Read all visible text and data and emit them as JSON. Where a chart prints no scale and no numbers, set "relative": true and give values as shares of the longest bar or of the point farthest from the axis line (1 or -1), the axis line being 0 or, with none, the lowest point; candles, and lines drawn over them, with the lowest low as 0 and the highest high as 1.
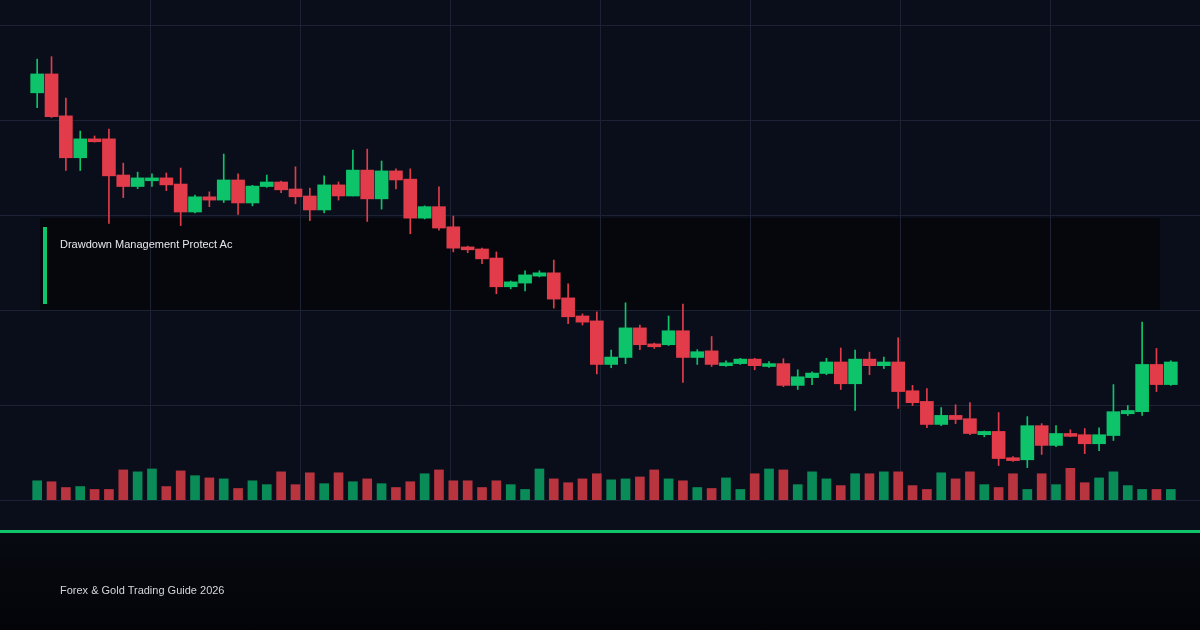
{
  "chart_data": [
    {
      "type": "candlestick",
      "relative": true,
      "grid": true,
      "categories": [
        null,
        null,
        null,
        null,
        null,
        null,
        null,
        null,
        null,
        null,
        null,
        null,
        null,
        null,
        null,
        null,
        null,
        null,
        null,
        null,
        null,
        null,
        null,
        null,
        null,
        null,
        null,
        null,
        null,
        null,
        null,
        null,
        null,
        null,
        null,
        null,
        null,
        null,
        null,
        null,
        null,
        null,
        null,
        null,
        null,
        null,
        null,
        null,
        null,
        null,
        null,
        null,
        null,
        null,
        null,
        null,
        null,
        null,
        null,
        null,
        null,
        null,
        null,
        null,
        null,
        null,
        null,
        null,
        null,
        null,
        null,
        null,
        null,
        null,
        null,
        null,
        null,
        null,
        null,
        null
      ],
      "ohlc": [
        [
          0.912,
          0.994,
          0.876,
          0.958
        ],
        [
          0.958,
          1,
          0.852,
          0.854
        ],
        [
          0.856,
          0.899,
          0.723,
          0.754
        ],
        [
          0.754,
          0.819,
          0.723,
          0.8
        ],
        [
          0.8,
          0.807,
          0.792,
          0.793
        ],
        [
          0.8,
          0.824,
          0.594,
          0.71
        ],
        [
          0.712,
          0.741,
          0.657,
          0.684
        ],
        [
          0.684,
          0.719,
          0.679,
          0.705
        ],
        [
          0.698,
          0.715,
          0.684,
          0.705
        ],
        [
          0.705,
          0.717,
          0.674,
          0.688
        ],
        [
          0.69,
          0.729,
          0.589,
          0.622
        ],
        [
          0.622,
          0.663,
          0.62,
          0.659
        ],
        [
          0.659,
          0.671,
          0.635,
          0.651
        ],
        [
          0.651,
          0.763,
          0.645,
          0.7
        ],
        [
          0.7,
          0.715,
          0.616,
          0.644
        ],
        [
          0.644,
          0.687,
          0.637,
          0.685
        ],
        [
          0.684,
          0.712,
          0.682,
          0.695
        ],
        [
          0.695,
          0.697,
          0.669,
          0.676
        ],
        [
          0.678,
          0.732,
          0.642,
          0.659
        ],
        [
          0.661,
          0.68,
          0.601,
          0.627
        ],
        [
          0.627,
          0.71,
          0.62,
          0.688
        ],
        [
          0.688,
          0.695,
          0.651,
          0.661
        ],
        [
          0.661,
          0.773,
          0.661,
          0.724
        ],
        [
          0.724,
          0.775,
          0.599,
          0.654
        ],
        [
          0.654,
          0.746,
          0.629,
          0.722
        ],
        [
          0.722,
          0.727,
          0.678,
          0.7
        ],
        [
          0.702,
          0.727,
          0.569,
          0.607
        ],
        [
          0.607,
          0.637,
          0.605,
          0.635
        ],
        [
          0.635,
          0.683,
          0.578,
          0.583
        ],
        [
          0.586,
          0.612,
          0.525,
          0.534
        ],
        [
          0.537,
          0.539,
          0.523,
          0.53
        ],
        [
          0.532,
          0.534,
          0.496,
          0.508
        ],
        [
          0.51,
          0.525,
          0.423,
          0.44
        ],
        [
          0.44,
          0.454,
          0.435,
          0.452
        ],
        [
          0.449,
          0.479,
          0.43,
          0.469
        ],
        [
          0.466,
          0.479,
          0.464,
          0.474
        ],
        [
          0.474,
          0.505,
          0.388,
          0.41
        ],
        [
          0.413,
          0.447,
          0.35,
          0.367
        ],
        [
          0.369,
          0.374,
          0.347,
          0.354
        ],
        [
          0.357,
          0.379,
          0.228,
          0.251
        ],
        [
          0.251,
          0.286,
          0.243,
          0.269
        ],
        [
          0.268,
          0.401,
          0.253,
          0.34
        ],
        [
          0.34,
          0.347,
          0.287,
          0.299
        ],
        [
          0.301,
          0.303,
          0.29,
          0.294
        ],
        [
          0.299,
          0.369,
          0.297,
          0.333
        ],
        [
          0.333,
          0.398,
          0.207,
          0.268
        ],
        [
          0.268,
          0.287,
          0.251,
          0.282
        ],
        [
          0.284,
          0.319,
          0.246,
          0.251
        ],
        [
          0.248,
          0.26,
          0.246,
          0.255
        ],
        [
          0.253,
          0.266,
          0.251,
          0.264
        ],
        [
          0.264,
          0.266,
          0.238,
          0.248
        ],
        [
          0.246,
          0.258,
          0.244,
          0.253
        ],
        [
          0.253,
          0.265,
          0.197,
          0.2
        ],
        [
          0.2,
          0.238,
          0.19,
          0.221
        ],
        [
          0.219,
          0.233,
          0.202,
          0.23
        ],
        [
          0.229,
          0.266,
          0.226,
          0.257
        ],
        [
          0.257,
          0.291,
          0.19,
          0.204
        ],
        [
          0.204,
          0.286,
          0.139,
          0.264
        ],
        [
          0.264,
          0.281,
          0.226,
          0.248
        ],
        [
          0.248,
          0.269,
          0.241,
          0.257
        ],
        [
          0.257,
          0.316,
          0.144,
          0.185
        ],
        [
          0.187,
          0.2,
          0.151,
          0.158
        ],
        [
          0.161,
          0.192,
          0.097,
          0.105
        ],
        [
          0.105,
          0.146,
          0.102,
          0.127
        ],
        [
          0.127,
          0.153,
          0.107,
          0.117
        ],
        [
          0.119,
          0.158,
          0.08,
          0.083
        ],
        [
          0.08,
          0.089,
          0.075,
          0.088
        ],
        [
          0.088,
          0.134,
          0.005,
          0.022
        ],
        [
          0.024,
          0.027,
          0.015,
          0.017
        ],
        [
          0.019,
          0.124,
          0,
          0.102
        ],
        [
          0.102,
          0.107,
          0.032,
          0.054
        ],
        [
          0.054,
          0.102,
          0.051,
          0.083
        ],
        [
          0.083,
          0.092,
          0.075,
          0.076
        ],
        [
          0.08,
          0.095,
          0.034,
          0.058
        ],
        [
          0.058,
          0.097,
          0.041,
          0.08
        ],
        [
          0.078,
          0.202,
          0.066,
          0.136
        ],
        [
          0.131,
          0.151,
          0.127,
          0.139
        ],
        [
          0.136,
          0.354,
          0.127,
          0.251
        ],
        [
          0.251,
          0.29,
          0.185,
          0.202
        ],
        [
          0.202,
          0.26,
          0.2,
          0.257
        ]
      ],
      "colors": [
        "#0ec46a",
        "#e23c4a",
        "#e23c4a",
        "#0ec46a",
        "#e23c4a",
        "#e23c4a",
        "#e23c4a",
        "#0ec46a",
        "#0ec46a",
        "#e23c4a",
        "#e23c4a",
        "#0ec46a",
        "#e23c4a",
        "#0ec46a",
        "#e23c4a",
        "#0ec46a",
        "#0ec46a",
        "#e23c4a",
        "#e23c4a",
        "#e23c4a",
        "#0ec46a",
        "#e23c4a",
        "#0ec46a",
        "#e23c4a",
        "#0ec46a",
        "#e23c4a",
        "#e23c4a",
        "#0ec46a",
        "#e23c4a",
        "#e23c4a",
        "#e23c4a",
        "#e23c4a",
        "#e23c4a",
        "#0ec46a",
        "#0ec46a",
        "#0ec46a",
        "#e23c4a",
        "#e23c4a",
        "#e23c4a",
        "#e23c4a",
        "#0ec46a",
        "#0ec46a",
        "#e23c4a",
        "#e23c4a",
        "#0ec46a",
        "#e23c4a",
        "#0ec46a",
        "#e23c4a",
        "#0ec46a",
        "#0ec46a",
        "#e23c4a",
        "#0ec46a",
        "#e23c4a",
        "#0ec46a",
        "#0ec46a",
        "#0ec46a",
        "#e23c4a",
        "#0ec46a",
        "#e23c4a",
        "#0ec46a",
        "#e23c4a",
        "#e23c4a",
        "#e23c4a",
        "#0ec46a",
        "#e23c4a",
        "#e23c4a",
        "#0ec46a",
        "#e23c4a",
        "#e23c4a",
        "#0ec46a",
        "#e23c4a",
        "#0ec46a",
        "#e23c4a",
        "#e23c4a",
        "#0ec46a",
        "#0ec46a",
        "#0ec46a",
        "#0ec46a",
        "#e23c4a",
        "#0ec46a"
      ],
      "annotations": [
        "Drawdown Management Protect Ac",
        "Forex & Gold Trading Guide 2026"
      ]
    },
    {
      "type": "bar",
      "relative": true,
      "grid": true,
      "categories": [
        null,
        null,
        null,
        null,
        null,
        null,
        null,
        null,
        null,
        null,
        null,
        null,
        null,
        null,
        null,
        null,
        null,
        null,
        null,
        null,
        null,
        null,
        null,
        null,
        null,
        null,
        null,
        null,
        null,
        null,
        null,
        null,
        null,
        null,
        null,
        null,
        null,
        null,
        null,
        null,
        null,
        null,
        null,
        null,
        null,
        null,
        null,
        null,
        null,
        null,
        null,
        null,
        null,
        null,
        null,
        null,
        null,
        null,
        null,
        null,
        null,
        null,
        null,
        null,
        null,
        null,
        null,
        null,
        null,
        null,
        null,
        null,
        null,
        null,
        null,
        null,
        null,
        null,
        null,
        null
      ],
      "values": [
        0.6,
        0.57,
        0.39,
        0.42,
        0.33,
        0.33,
        0.94,
        0.88,
        0.97,
        0.42,
        0.91,
        0.76,
        0.69,
        0.66,
        0.36,
        0.6,
        0.48,
        0.88,
        0.48,
        0.85,
        0.51,
        0.85,
        0.57,
        0.66,
        0.51,
        0.39,
        0.57,
        0.82,
        0.94,
        0.6,
        0.6,
        0.39,
        0.6,
        0.48,
        0.33,
        0.97,
        0.66,
        0.54,
        0.66,
        0.82,
        0.63,
        0.66,
        0.72,
        0.94,
        0.66,
        0.6,
        0.39,
        0.36,
        0.69,
        0.33,
        0.82,
        0.97,
        0.94,
        0.48,
        0.88,
        0.66,
        0.45,
        0.82,
        0.82,
        0.88,
        0.88,
        0.45,
        0.33,
        0.85,
        0.66,
        0.88,
        0.48,
        0.39,
        0.82,
        0.33,
        0.82,
        0.48,
        1,
        0.54,
        0.69,
        0.88,
        0.45,
        0.33,
        0.33,
        0.33
      ],
      "colors": [
        "#0a8c58",
        "#b8343f",
        "#b8343f",
        "#0a8c58",
        "#b8343f",
        "#b8343f",
        "#b8343f",
        "#0a8c58",
        "#0a8c58",
        "#b8343f",
        "#b8343f",
        "#0a8c58",
        "#b8343f",
        "#0a8c58",
        "#b8343f",
        "#0a8c58",
        "#0a8c58",
        "#b8343f",
        "#b8343f",
        "#b8343f",
        "#0a8c58",
        "#b8343f",
        "#0a8c58",
        "#b8343f",
        "#0a8c58",
        "#b8343f",
        "#b8343f",
        "#0a8c58",
        "#b8343f",
        "#b8343f",
        "#b8343f",
        "#b8343f",
        "#b8343f",
        "#0a8c58",
        "#0a8c58",
        "#0a8c58",
        "#b8343f",
        "#b8343f",
        "#b8343f",
        "#b8343f",
        "#0a8c58",
        "#0a8c58",
        "#b8343f",
        "#b8343f",
        "#0a8c58",
        "#b8343f",
        "#0a8c58",
        "#b8343f",
        "#0a8c58",
        "#0a8c58",
        "#b8343f",
        "#0a8c58",
        "#b8343f",
        "#0a8c58",
        "#0a8c58",
        "#0a8c58",
        "#b8343f",
        "#0a8c58",
        "#b8343f",
        "#0a8c58",
        "#b8343f",
        "#b8343f",
        "#b8343f",
        "#0a8c58",
        "#b8343f",
        "#b8343f",
        "#0a8c58",
        "#b8343f",
        "#b8343f",
        "#0a8c58",
        "#b8343f",
        "#0a8c58",
        "#b8343f",
        "#b8343f",
        "#0a8c58",
        "#0a8c58",
        "#0a8c58",
        "#0a8c58",
        "#b8343f",
        "#0a8c58"
      ]
    }
  ]
}
